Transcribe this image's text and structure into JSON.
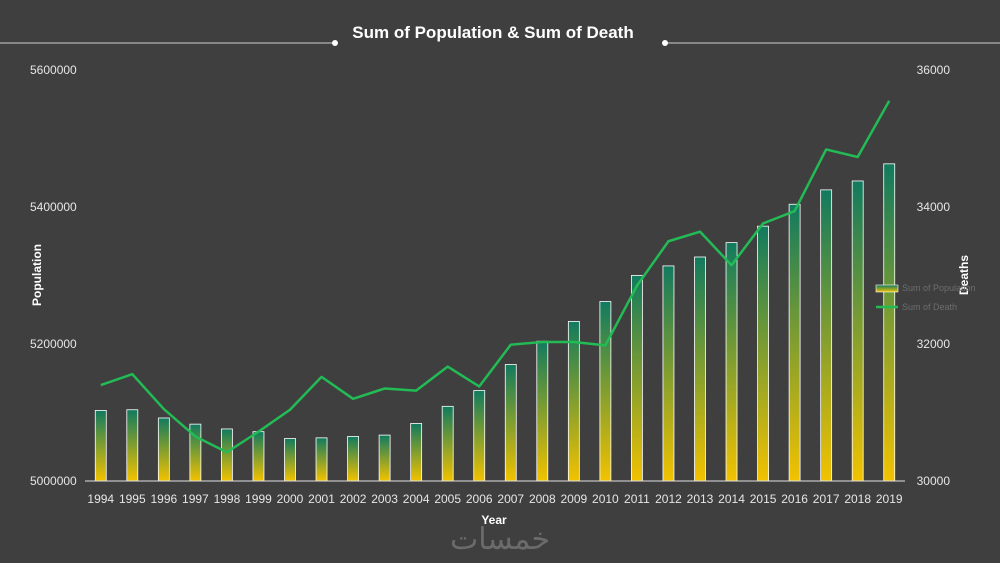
{
  "chart_data": {
    "type": "bar",
    "title": "Sum of Population & Sum of Death",
    "xlabel": "Year",
    "ylabel": "Population",
    "y2label": "Deaths",
    "categories": [
      "1994",
      "1995",
      "1996",
      "1997",
      "1998",
      "1999",
      "2000",
      "2001",
      "2002",
      "2003",
      "2004",
      "2005",
      "2006",
      "2007",
      "2008",
      "2009",
      "2010",
      "2011",
      "2012",
      "2013",
      "2014",
      "2015",
      "2016",
      "2017",
      "2018",
      "2019"
    ],
    "ylim": [
      5000000,
      5600000
    ],
    "y2lim": [
      30000,
      36000
    ],
    "yticks": [
      "5000000",
      "5200000",
      "5400000",
      "5600000"
    ],
    "y2ticks": [
      "30000",
      "32000",
      "34000",
      "36000"
    ],
    "series": [
      {
        "name": "Sum of Population",
        "type": "bar",
        "axis": "left",
        "values": [
          5103000,
          5104000,
          5092000,
          5083000,
          5076000,
          5072000,
          5062000,
          5063000,
          5065000,
          5067000,
          5084000,
          5109000,
          5132000,
          5170000,
          5204000,
          5233000,
          5262000,
          5300000,
          5314000,
          5327000,
          5348000,
          5372000,
          5404000,
          5425000,
          5438000,
          5463000
        ]
      },
      {
        "name": "Sum of Death",
        "type": "line",
        "axis": "right",
        "values": [
          31400,
          31560,
          31050,
          30650,
          30420,
          30720,
          31040,
          31520,
          31200,
          31350,
          31320,
          31670,
          31380,
          31990,
          32030,
          32030,
          31980,
          32850,
          33500,
          33640,
          33150,
          33760,
          33940,
          34840,
          34730,
          35550
        ]
      }
    ],
    "legend_position": "right",
    "colors": {
      "background": "#3f3f3f",
      "bar_top": "#117a5f",
      "bar_bottom": "#f2c200",
      "bar_outline": "#ffffff",
      "line": "#22bb55",
      "axis": "#e0e0e0",
      "text": "#ffffff"
    }
  },
  "watermark": "خمسات"
}
